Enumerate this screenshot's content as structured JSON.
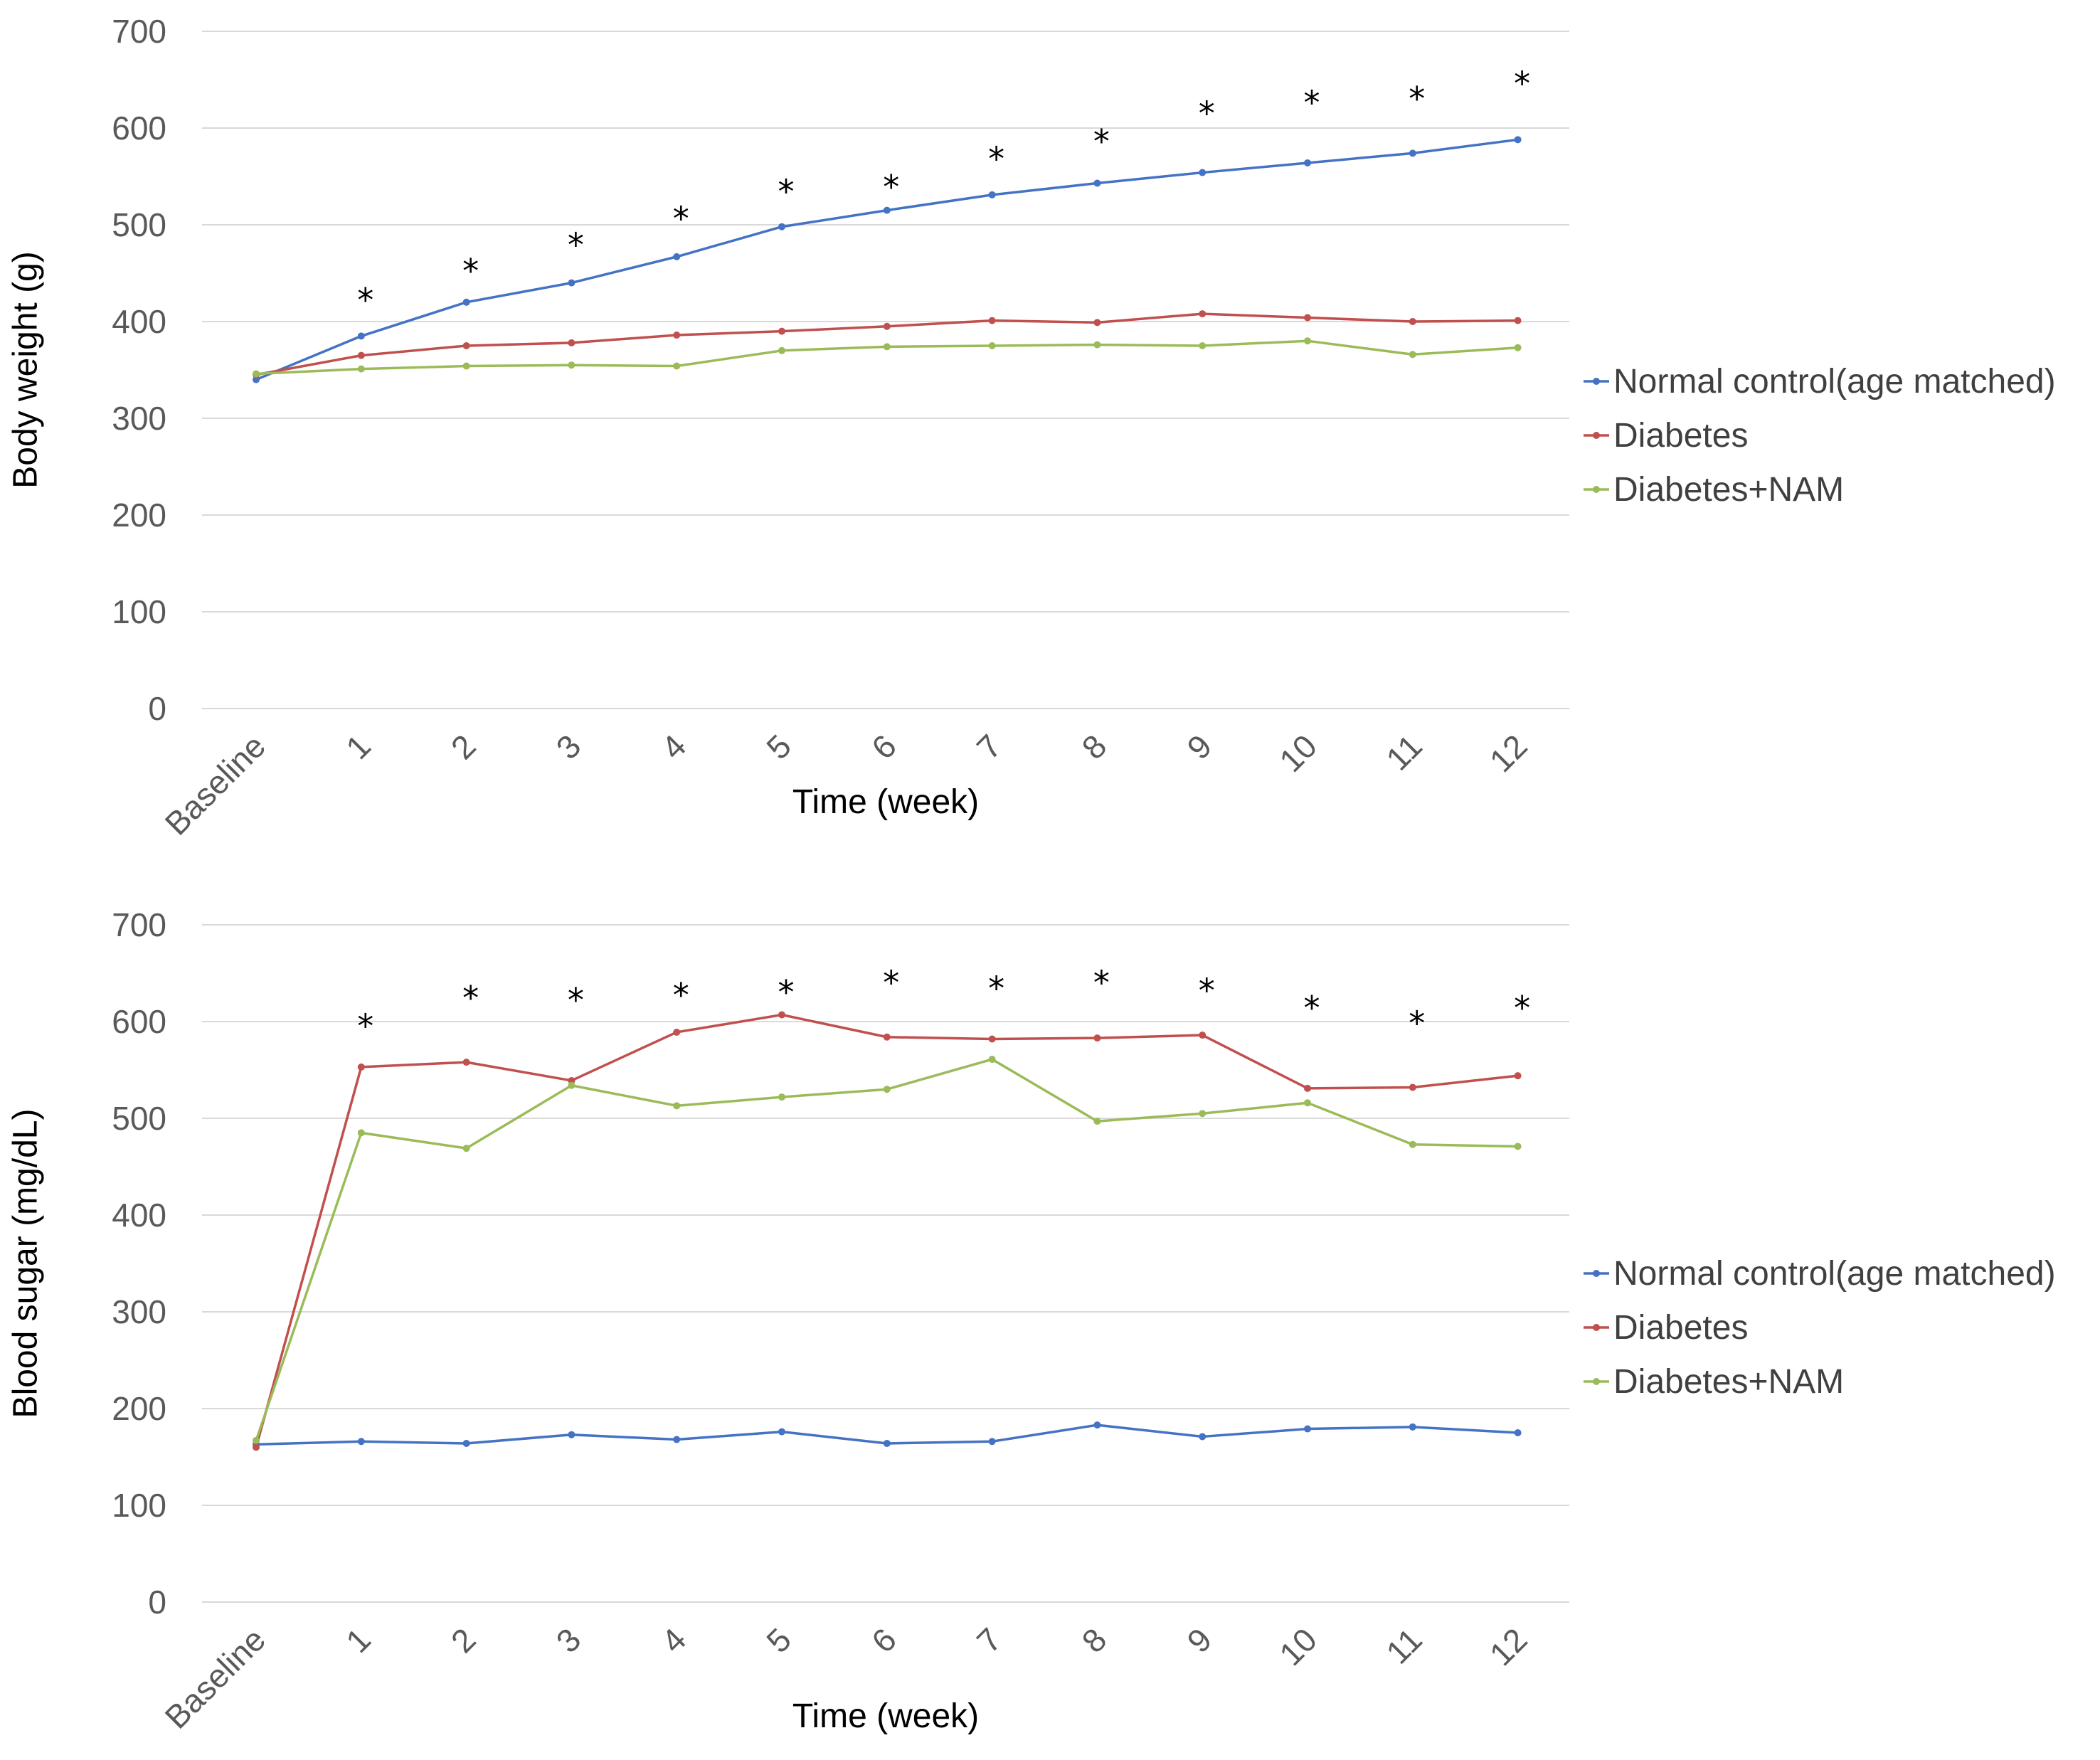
{
  "chart_data": [
    {
      "type": "line",
      "title": "",
      "xlabel": "Time (week)",
      "ylabel": "Body weight (g)",
      "ylim": [
        0,
        700
      ],
      "yticks": [
        0,
        100,
        200,
        300,
        400,
        500,
        600,
        700
      ],
      "categories": [
        "Baseline",
        "1",
        "2",
        "3",
        "4",
        "5",
        "6",
        "7",
        "8",
        "9",
        "10",
        "11",
        "12"
      ],
      "grid": true,
      "legend_position": "right",
      "annotations": [
        {
          "text": "*",
          "category": "1",
          "y": 428
        },
        {
          "text": "*",
          "category": "2",
          "y": 458
        },
        {
          "text": "*",
          "category": "3",
          "y": 485
        },
        {
          "text": "*",
          "category": "4",
          "y": 512
        },
        {
          "text": "*",
          "category": "5",
          "y": 540
        },
        {
          "text": "*",
          "category": "6",
          "y": 545
        },
        {
          "text": "*",
          "category": "7",
          "y": 574
        },
        {
          "text": "*",
          "category": "8",
          "y": 592
        },
        {
          "text": "*",
          "category": "9",
          "y": 621
        },
        {
          "text": "*",
          "category": "10",
          "y": 632
        },
        {
          "text": "*",
          "category": "11",
          "y": 636
        },
        {
          "text": "*",
          "category": "12",
          "y": 652
        }
      ],
      "series": [
        {
          "name": "Normal control(age matched)",
          "color": "#4472c4",
          "values": [
            340,
            385,
            420,
            440,
            467,
            498,
            515,
            531,
            543,
            554,
            564,
            574,
            588
          ]
        },
        {
          "name": "Diabetes",
          "color": "#c0504d",
          "values": [
            345,
            365,
            375,
            378,
            386,
            390,
            395,
            401,
            399,
            408,
            404,
            400,
            401
          ]
        },
        {
          "name": "Diabetes+NAM",
          "color": "#9bbb59",
          "values": [
            346,
            351,
            354,
            355,
            354,
            370,
            374,
            375,
            376,
            375,
            380,
            366,
            373
          ]
        }
      ]
    },
    {
      "type": "line",
      "title": "",
      "xlabel": "Time (week)",
      "ylabel": "Blood sugar (mg/dL)",
      "ylim": [
        0,
        700
      ],
      "yticks": [
        0,
        100,
        200,
        300,
        400,
        500,
        600,
        700
      ],
      "categories": [
        "Baseline",
        "1",
        "2",
        "3",
        "4",
        "5",
        "6",
        "7",
        "8",
        "9",
        "10",
        "11",
        "12"
      ],
      "grid": true,
      "legend_position": "right",
      "annotations": [
        {
          "text": "*",
          "category": "1",
          "y": 601
        },
        {
          "text": "*",
          "category": "2",
          "y": 630
        },
        {
          "text": "*",
          "category": "3",
          "y": 628
        },
        {
          "text": "*",
          "category": "4",
          "y": 633
        },
        {
          "text": "*",
          "category": "5",
          "y": 636
        },
        {
          "text": "*",
          "category": "6",
          "y": 646
        },
        {
          "text": "*",
          "category": "7",
          "y": 640
        },
        {
          "text": "*",
          "category": "8",
          "y": 646
        },
        {
          "text": "*",
          "category": "9",
          "y": 638
        },
        {
          "text": "*",
          "category": "10",
          "y": 620
        },
        {
          "text": "*",
          "category": "11",
          "y": 604
        },
        {
          "text": "*",
          "category": "12",
          "y": 620
        }
      ],
      "series": [
        {
          "name": "Normal control(age matched)",
          "color": "#4472c4",
          "values": [
            163,
            166,
            164,
            173,
            168,
            176,
            164,
            166,
            183,
            171,
            179,
            181,
            175
          ]
        },
        {
          "name": "Diabetes",
          "color": "#c0504d",
          "values": [
            160,
            553,
            558,
            539,
            589,
            607,
            584,
            582,
            583,
            586,
            531,
            532,
            544
          ]
        },
        {
          "name": "Diabetes+NAM",
          "color": "#9bbb59",
          "values": [
            167,
            485,
            469,
            534,
            513,
            522,
            530,
            561,
            497,
            505,
            516,
            473,
            471
          ]
        }
      ]
    }
  ]
}
